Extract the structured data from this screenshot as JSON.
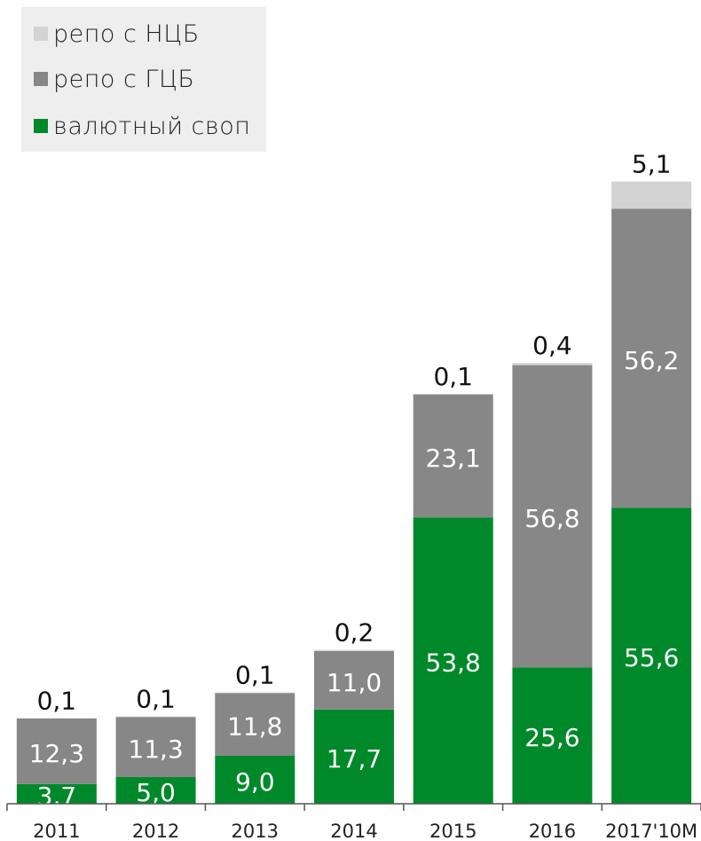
{
  "chart_data": {
    "type": "bar",
    "stacked": true,
    "categories": [
      "2011",
      "2012",
      "2013",
      "2014",
      "2015",
      "2016",
      "2017'10M"
    ],
    "series": [
      {
        "name": "валютный своп",
        "color": "#00892a",
        "text_color": "#ffffff",
        "values": [
          3.7,
          5.0,
          9.0,
          17.7,
          53.8,
          25.6,
          55.6
        ],
        "labels": [
          "3,7",
          "5,0",
          "9,0",
          "17,7",
          "53,8",
          "25,6",
          "55,6"
        ]
      },
      {
        "name": "репо с ГЦБ",
        "color": "#878787",
        "text_color": "#ffffff",
        "values": [
          12.3,
          11.3,
          11.8,
          11.0,
          23.1,
          56.8,
          56.2
        ],
        "labels": [
          "12,3",
          "11,3",
          "11,8",
          "11,0",
          "23,1",
          "56,8",
          "56,2"
        ]
      },
      {
        "name": "репо с НЦБ",
        "color": "#d3d3d3",
        "text_color": "#111111",
        "values": [
          0.1,
          0.1,
          0.1,
          0.2,
          0.1,
          0.4,
          5.1
        ],
        "labels": [
          "0,1",
          "0,1",
          "0,1",
          "0,2",
          "0,1",
          "0,4",
          "5,1"
        ]
      }
    ],
    "legend_order": [
      "репо с НЦБ",
      "репо с ГЦБ",
      "валютный своп"
    ],
    "legend_position": "top-left",
    "ylim": [
      0,
      117
    ],
    "grid": false
  }
}
